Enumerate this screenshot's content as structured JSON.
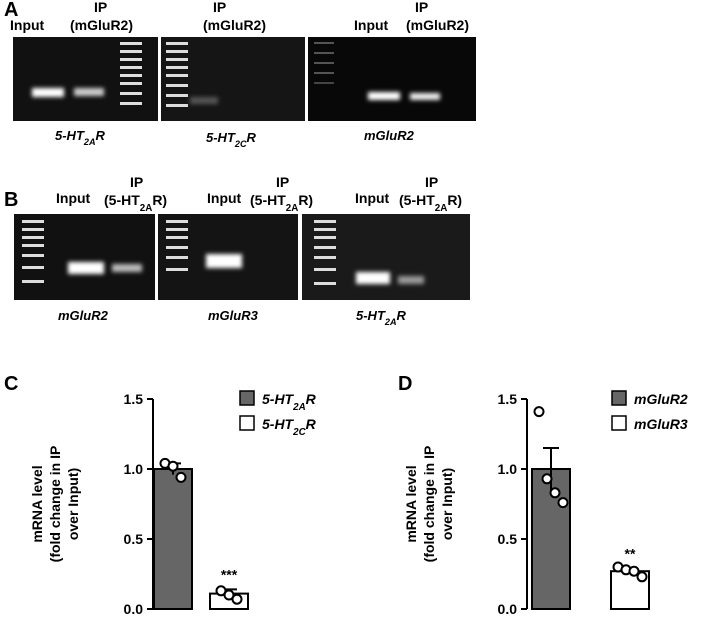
{
  "panels": {
    "A": "A",
    "B": "B",
    "C": "C",
    "D": "D"
  },
  "gel_a": {
    "input": "Input",
    "ip": "IP",
    "ip_target": "(mGluR2)",
    "genes": [
      "5-HT2AR",
      "5-HT2CR",
      "mGluR2"
    ]
  },
  "gel_b": {
    "input": "Input",
    "ip": "IP",
    "ip_target": "(5-HT2AR)",
    "genes": [
      "mGluR2",
      "mGluR3",
      "5-HT2AR"
    ]
  },
  "chart_data": [
    {
      "type": "bar",
      "ylabel": [
        "mRNA level",
        "(fold change in IP",
        "over Input)"
      ],
      "series": [
        {
          "name": "5-HT2AR",
          "color": "#666666"
        },
        {
          "name": "5-HT2CR",
          "color": "#ffffff"
        }
      ],
      "values": [
        1.0,
        0.11
      ],
      "errors": [
        0.04,
        0.03
      ],
      "points": [
        [
          1.04,
          1.02,
          0.94
        ],
        [
          0.13,
          0.1,
          0.07
        ]
      ],
      "annotations": [
        null,
        "***"
      ],
      "ylim": [
        0,
        1.5
      ],
      "yticks": [
        {
          "value": 0,
          "label": "0.0"
        },
        0.5,
        {
          "value": 1,
          "label": "1.0"
        },
        1.5
      ]
    },
    {
      "type": "bar",
      "ylabel": [
        "mRNA level",
        "(fold change in IP",
        "over Input)"
      ],
      "series": [
        {
          "name": "mGluR2",
          "color": "#666666"
        },
        {
          "name": "mGluR3",
          "color": "#ffffff"
        }
      ],
      "values": [
        1.0,
        0.27
      ],
      "errors": [
        0.15,
        0.02
      ],
      "points": [
        [
          1.41,
          0.93,
          0.83,
          0.76
        ],
        [
          0.3,
          0.28,
          0.27,
          0.23
        ]
      ],
      "annotations": [
        null,
        "**"
      ],
      "ylim": [
        0,
        1.5
      ],
      "yticks": [
        {
          "value": 0,
          "label": "0.0"
        },
        0.5,
        {
          "value": 1,
          "label": "1.0"
        },
        1.5
      ]
    }
  ]
}
